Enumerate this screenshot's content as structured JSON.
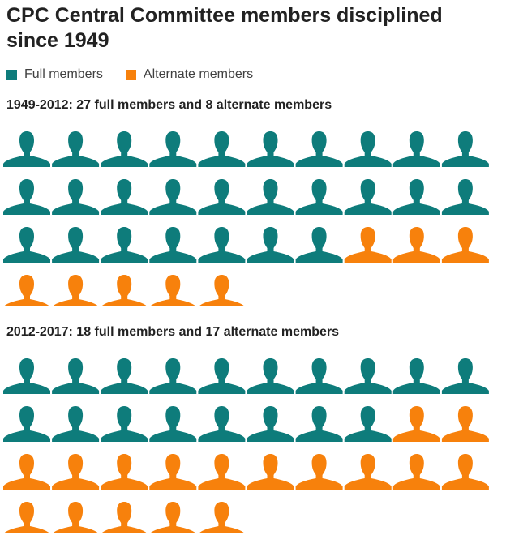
{
  "colors": {
    "full": "#0e7c7b",
    "alternate": "#f7810c"
  },
  "chart_data": {
    "type": "pictogram",
    "title": "CPC Central Committee members disciplined since 1949",
    "legend": [
      {
        "key": "full",
        "label": "Full members"
      },
      {
        "key": "alternate",
        "label": "Alternate members"
      }
    ],
    "icons_per_row": 10,
    "groups": [
      {
        "period": "1949-2012",
        "label": "1949-2012: 27 full members and 8 alternate members",
        "full_members": 27,
        "alternate_members": 8
      },
      {
        "period": "2012-2017",
        "label": "2012-2017: 18 full members and 17 alternate members",
        "full_members": 18,
        "alternate_members": 17
      }
    ]
  }
}
